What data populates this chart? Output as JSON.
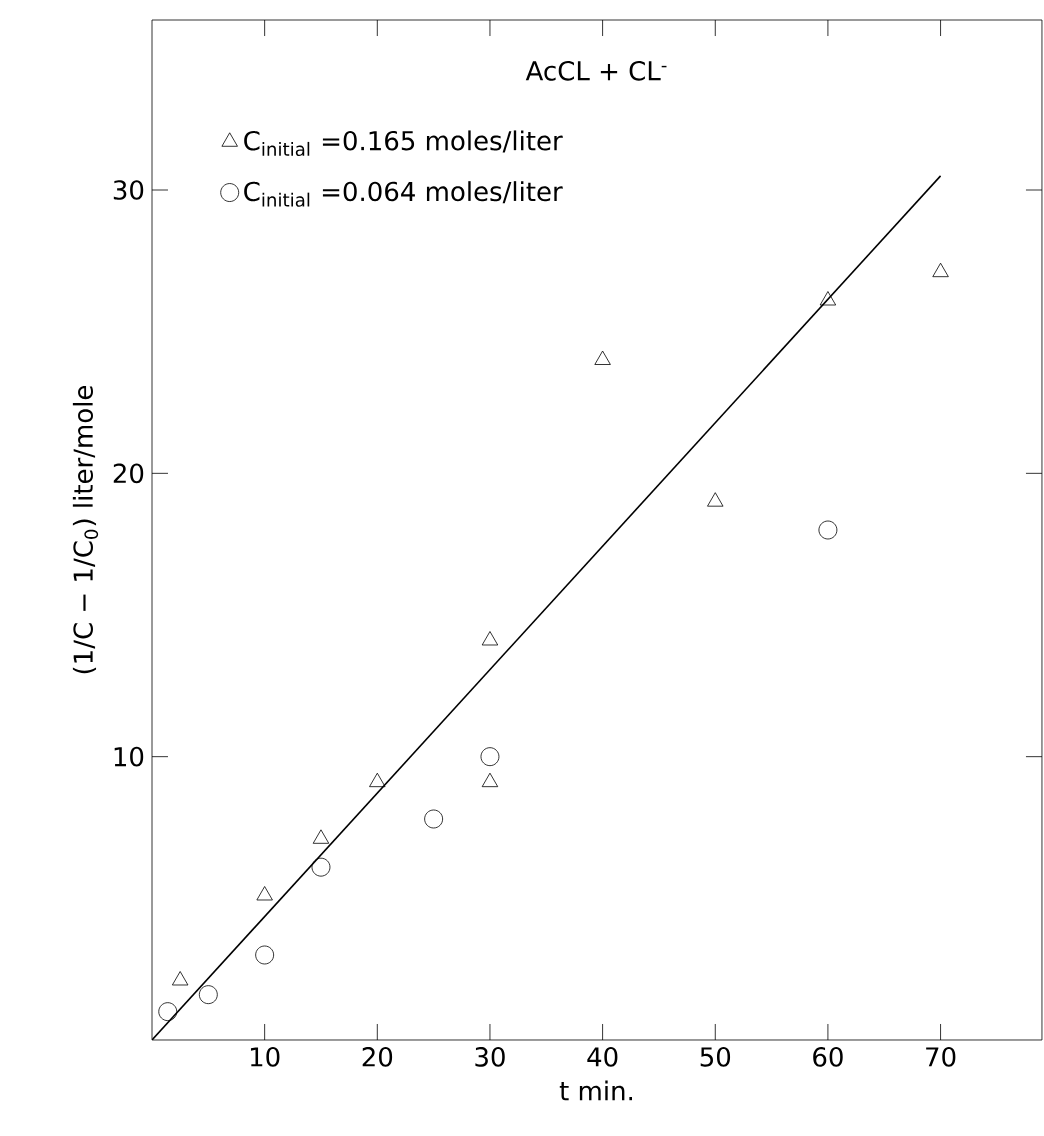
{
  "chart_data": {
    "type": "scatter",
    "title": "AcCL + CL$^{-}$",
    "xlabel": "t  min.",
    "ylabel": "(1/C − 1/C$_{0}$) liter/mole",
    "xlim": [
      0,
      79
    ],
    "ylim": [
      0,
      36
    ],
    "xticks": [
      10,
      20,
      30,
      40,
      50,
      60,
      70
    ],
    "yticks": [
      10,
      20,
      30
    ],
    "grid": false,
    "legend": "top left",
    "series": [
      {
        "name": "C$_{initial}$ =0.165 moles/liter",
        "color": "#000000",
        "marker": "triangle",
        "x": [
          2.5,
          10,
          15,
          20,
          30,
          30,
          40,
          50,
          60,
          70
        ],
        "values": [
          2.1,
          5.1,
          7.1,
          9.1,
          14.1,
          9.1,
          24.0,
          19.0,
          26.1,
          27.1
        ]
      },
      {
        "name": "C$_{initial}$ =0.064 moles/liter",
        "color": "#000000",
        "marker": "circle",
        "x": [
          1.4,
          5,
          10,
          15,
          25,
          30,
          60
        ],
        "values": [
          1.0,
          1.6,
          3.0,
          6.1,
          7.8,
          10.0,
          18.0
        ]
      },
      {
        "type": "line",
        "color": "#000000",
        "marker": "none",
        "line_style": "solid",
        "x": [
          0,
          70
        ],
        "values": [
          0,
          30.5
        ]
      }
    ]
  }
}
